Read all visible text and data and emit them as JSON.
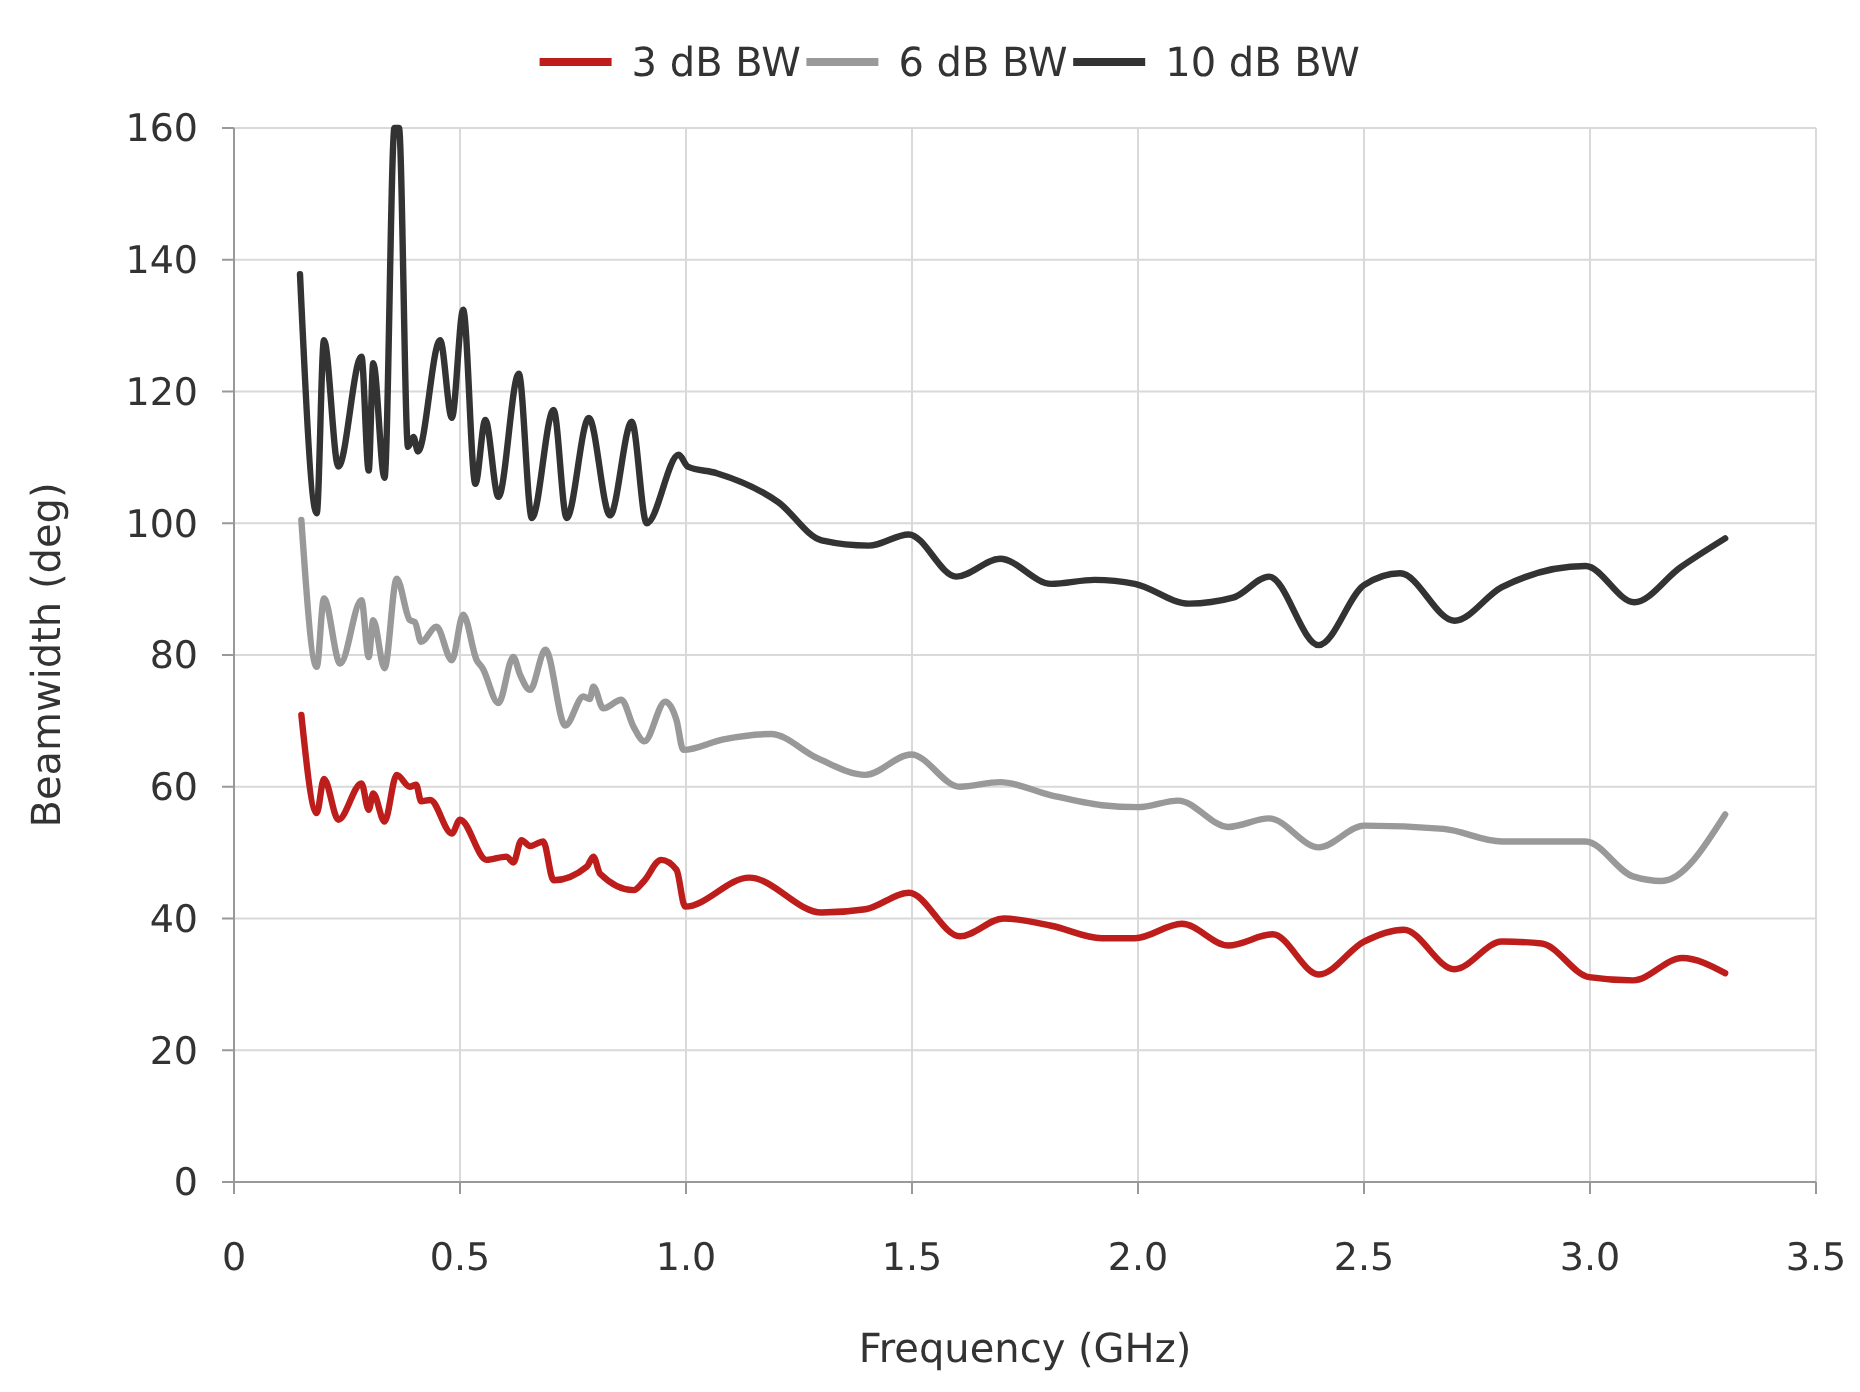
{
  "chart_data": {
    "type": "line",
    "xlabel": "Frequency (GHz)",
    "ylabel": "Beamwidth (deg)",
    "xlim": [
      0,
      3.5
    ],
    "ylim": [
      0,
      160
    ],
    "xticks": [
      0,
      0.5,
      {
        "value": 1,
        "label": "1.0"
      },
      1.5,
      {
        "value": 2,
        "label": "2.0"
      },
      2.5,
      {
        "value": 3,
        "label": "3.0"
      },
      3.5
    ],
    "yticks": [
      0,
      20,
      40,
      60,
      80,
      100,
      120,
      140,
      160
    ],
    "grid": true,
    "legend": "top",
    "line_style": "solid",
    "marker": "none",
    "series": [
      {
        "name": "3 dB BW",
        "color": "#be1e1b",
        "x": [
          0.149,
          0.183,
          0.199,
          0.231,
          0.282,
          0.298,
          0.308,
          0.333,
          0.36,
          0.389,
          0.403,
          0.414,
          0.434,
          0.482,
          0.5,
          0.559,
          0.603,
          0.618,
          0.636,
          0.655,
          0.684,
          0.707,
          0.781,
          0.795,
          0.81,
          0.884,
          0.906,
          0.945,
          0.979,
          0.998,
          1.14,
          1.3,
          1.397,
          1.493,
          1.606,
          1.703,
          1.808,
          1.92,
          1.993,
          2.097,
          2.2,
          2.298,
          2.4,
          2.5,
          2.588,
          2.7,
          2.805,
          2.893,
          2.998,
          3.095,
          3.204,
          3.299
        ],
        "values": [
          70.9,
          56,
          61.2,
          55,
          60.5,
          56.5,
          59,
          54.7,
          61.8,
          60,
          60.3,
          57.8,
          58,
          52.9,
          55,
          48.9,
          49.4,
          48.5,
          51.9,
          51,
          51.7,
          45.8,
          47.9,
          49.4,
          46.8,
          44.3,
          45.6,
          48.9,
          47.4,
          41.8,
          46.2,
          40.9,
          41.4,
          43.9,
          37.3,
          40,
          38.9,
          37,
          37,
          39.2,
          35.9,
          37.6,
          31.5,
          36.5,
          38.3,
          32.3,
          36.5,
          36.2,
          31.1,
          30.6,
          34,
          31.7
        ]
      },
      {
        "name": "6 dB BW",
        "color": "#999999",
        "x": [
          0.149,
          0.183,
          0.199,
          0.235,
          0.282,
          0.298,
          0.308,
          0.333,
          0.36,
          0.389,
          0.4,
          0.414,
          0.448,
          0.482,
          0.507,
          0.537,
          0.55,
          0.585,
          0.618,
          0.633,
          0.655,
          0.689,
          0.733,
          0.773,
          0.787,
          0.795,
          0.817,
          0.857,
          0.884,
          0.908,
          0.954,
          0.979,
          0.994,
          1.083,
          1.188,
          1.292,
          1.397,
          1.498,
          1.606,
          1.695,
          1.808,
          1.92,
          2.0,
          2.089,
          2.2,
          2.29,
          2.4,
          2.5,
          2.676,
          2.805,
          2.99,
          3.095,
          3.159,
          3.299
        ],
        "values": [
          100.5,
          78.2,
          88.6,
          78.7,
          88.3,
          79.7,
          85.3,
          78,
          91.6,
          85.3,
          85,
          82,
          84.3,
          79.2,
          86.1,
          79.2,
          78,
          72.7,
          79.7,
          77,
          74.7,
          80.8,
          69.3,
          73.7,
          73.3,
          75.2,
          71.9,
          73.2,
          69.1,
          66.9,
          72.9,
          70.1,
          65.6,
          67.2,
          68,
          64.3,
          61.8,
          64.9,
          60,
          60.7,
          58.7,
          57.2,
          56.9,
          57.9,
          53.9,
          55.2,
          50.8,
          54.1,
          53.6,
          51.7,
          51.7,
          46.4,
          45.7,
          55.8
        ]
      },
      {
        "name": "10 dB BW",
        "color": "#333333",
        "x": [
          0.146,
          0.183,
          0.199,
          0.231,
          0.282,
          0.298,
          0.308,
          0.333,
          0.355,
          0.365,
          0.385,
          0.397,
          0.407,
          0.456,
          0.482,
          0.507,
          0.534,
          0.556,
          0.585,
          0.63,
          0.659,
          0.707,
          0.736,
          0.785,
          0.832,
          0.88,
          0.913,
          0.984,
          1.004,
          1.068,
          1.204,
          1.3,
          1.405,
          1.493,
          1.598,
          1.695,
          1.808,
          1.904,
          1.993,
          2.113,
          2.21,
          2.29,
          2.4,
          2.5,
          2.58,
          2.7,
          2.805,
          2.99,
          3.098,
          3.2,
          3.299
        ],
        "values": [
          137.8,
          101.5,
          127.8,
          108.6,
          125.3,
          108,
          124.3,
          106.9,
          160,
          160,
          111.6,
          113.1,
          110.9,
          127.8,
          116,
          132.4,
          106,
          115.7,
          104,
          122.7,
          100.8,
          117.2,
          100.8,
          116,
          101.2,
          115.4,
          100,
          110.4,
          108.6,
          107.6,
          103.2,
          97.4,
          96.6,
          98.3,
          91.9,
          94.6,
          90.8,
          91.4,
          90.8,
          87.8,
          88.7,
          91.9,
          81.5,
          90.6,
          92.4,
          85.2,
          90.3,
          93.5,
          88,
          93.3,
          97.7
        ]
      }
    ]
  }
}
